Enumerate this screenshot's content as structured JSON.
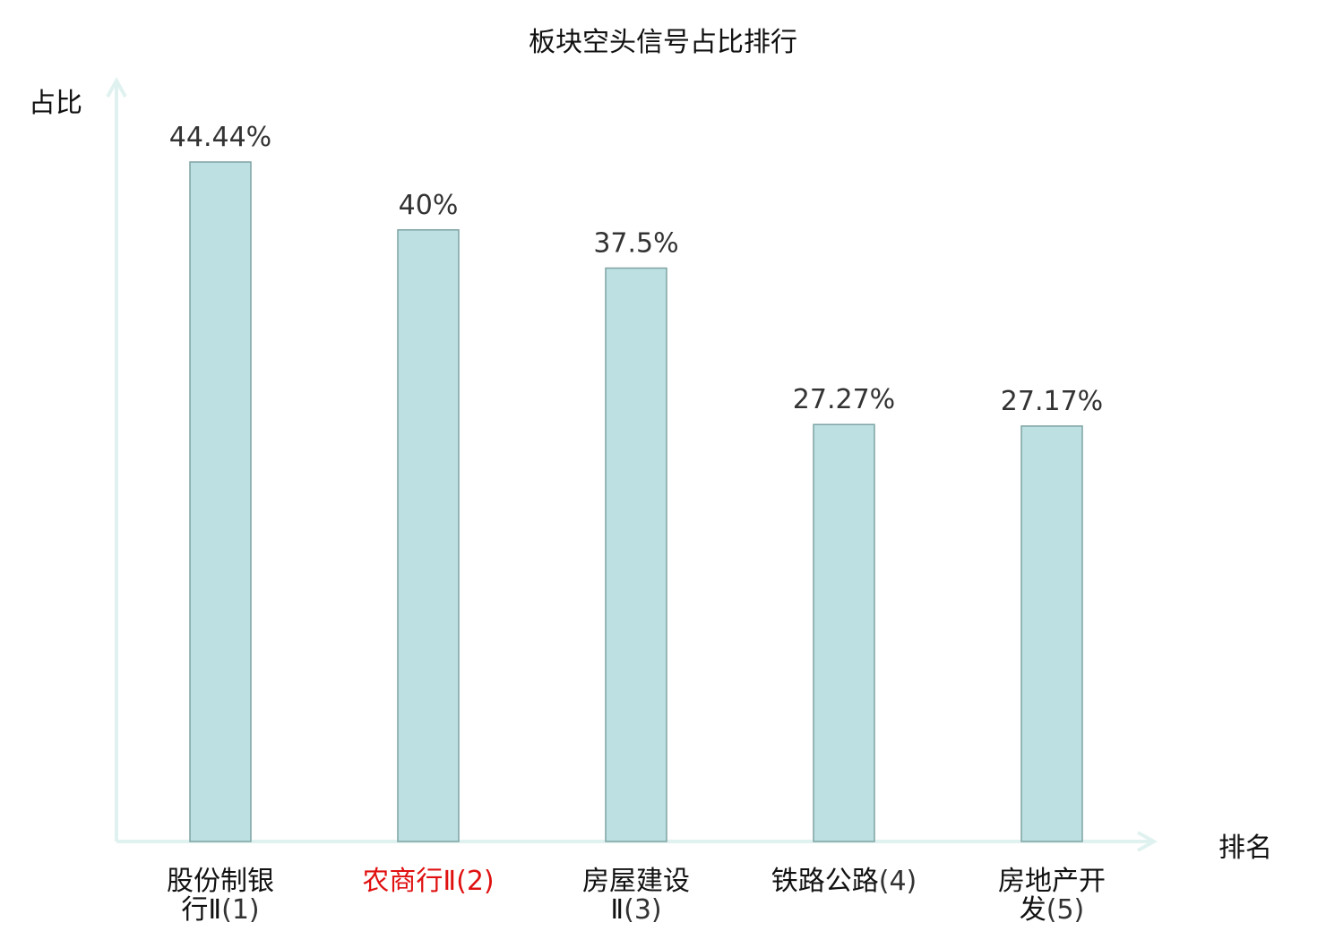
{
  "chart_data": {
    "type": "bar",
    "title": "板块空头信号占比排行",
    "ylabel": "占比",
    "xlabel": "排名",
    "ylim": [
      0,
      50
    ],
    "categories": [
      {
        "line1": "股份制银",
        "line2": "行Ⅱ",
        "rank": "(1)",
        "highlight": false
      },
      {
        "line1": "农商行Ⅱ",
        "line2": "",
        "rank": "(2)",
        "highlight": true
      },
      {
        "line1": "房屋建设",
        "line2": "Ⅱ",
        "rank": "(3)",
        "highlight": false
      },
      {
        "line1": "铁路公路",
        "line2": "",
        "rank": "(4)",
        "highlight": false
      },
      {
        "line1": "房地产开",
        "line2": "发",
        "rank": "(5)",
        "highlight": false
      }
    ],
    "values": [
      44.44,
      40,
      37.5,
      27.27,
      27.17
    ],
    "value_labels": [
      "44.44%",
      "40%",
      "37.5%",
      "27.27%",
      "27.17%"
    ],
    "grid": false,
    "legend": "none"
  },
  "colors": {
    "bar_fill": "#bde0e2",
    "bar_stroke": "#7fa3a4",
    "axis": "#e0f2ef",
    "value_text": "#333333",
    "label_text": "#111111",
    "highlight_text": "#e01010"
  }
}
